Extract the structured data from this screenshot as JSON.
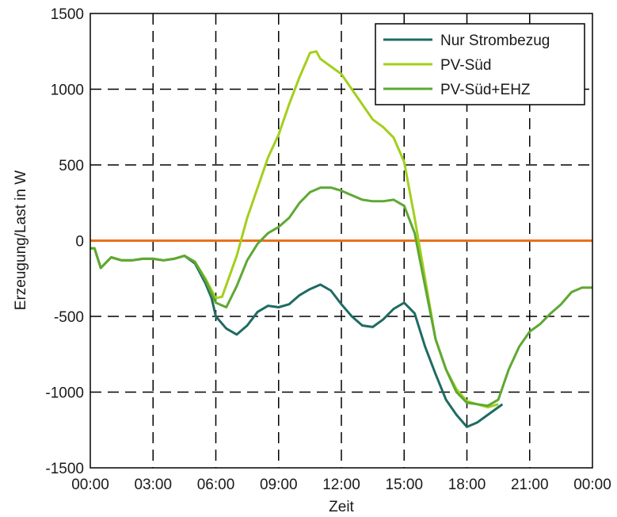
{
  "chart_data": {
    "type": "line",
    "title": "",
    "xlabel": "Zeit",
    "ylabel": "Erzeugung/Last in W",
    "xlim": [
      0,
      24
    ],
    "ylim": [
      -1500,
      1500
    ],
    "x_ticks": [
      "00:00",
      "03:00",
      "06:00",
      "09:00",
      "12:00",
      "15:00",
      "18:00",
      "21:00",
      "00:00"
    ],
    "y_ticks": [
      "1500",
      "1000",
      "500",
      "0",
      "-500",
      "-1000",
      "-1500"
    ],
    "y_tick_values": [
      1500,
      1000,
      500,
      0,
      -500,
      -1000,
      -1500
    ],
    "grid": true,
    "legend_position": "top-right",
    "zero_line_color": "#e8711a",
    "series": [
      {
        "name": "Nur Strombezug",
        "color": "#1f6b63",
        "points": [
          [
            0,
            -50
          ],
          [
            0.2,
            -50
          ],
          [
            0.5,
            -180
          ],
          [
            1,
            -110
          ],
          [
            1.5,
            -130
          ],
          [
            2,
            -130
          ],
          [
            2.5,
            -120
          ],
          [
            3,
            -120
          ],
          [
            3.5,
            -130
          ],
          [
            4,
            -120
          ],
          [
            4.5,
            -100
          ],
          [
            5,
            -150
          ],
          [
            5.5,
            -280
          ],
          [
            5.8,
            -380
          ],
          [
            6,
            -500
          ],
          [
            6.5,
            -580
          ],
          [
            7,
            -620
          ],
          [
            7.5,
            -560
          ],
          [
            8,
            -470
          ],
          [
            8.5,
            -430
          ],
          [
            9,
            -440
          ],
          [
            9.5,
            -420
          ],
          [
            10,
            -360
          ],
          [
            10.5,
            -320
          ],
          [
            11,
            -290
          ],
          [
            11.5,
            -330
          ],
          [
            12,
            -420
          ],
          [
            12.5,
            -500
          ],
          [
            13,
            -560
          ],
          [
            13.5,
            -570
          ],
          [
            14,
            -520
          ],
          [
            14.5,
            -450
          ],
          [
            15,
            -410
          ],
          [
            15.5,
            -480
          ],
          [
            16,
            -700
          ],
          [
            16.5,
            -880
          ],
          [
            17,
            -1050
          ],
          [
            17.5,
            -1150
          ],
          [
            18,
            -1230
          ],
          [
            18.5,
            -1200
          ],
          [
            19,
            -1150
          ],
          [
            19.5,
            -1100
          ],
          [
            19.7,
            -1080
          ]
        ]
      },
      {
        "name": "PV-Süd",
        "color": "#a3cf1c",
        "points": [
          [
            0,
            -50
          ],
          [
            0.2,
            -50
          ],
          [
            0.5,
            -180
          ],
          [
            1,
            -110
          ],
          [
            1.5,
            -130
          ],
          [
            2,
            -130
          ],
          [
            2.5,
            -120
          ],
          [
            3,
            -120
          ],
          [
            3.5,
            -130
          ],
          [
            4,
            -120
          ],
          [
            4.5,
            -100
          ],
          [
            5,
            -140
          ],
          [
            5.5,
            -250
          ],
          [
            6,
            -380
          ],
          [
            6.3,
            -370
          ],
          [
            7,
            -100
          ],
          [
            7.5,
            150
          ],
          [
            8,
            350
          ],
          [
            8.5,
            550
          ],
          [
            9,
            700
          ],
          [
            9.5,
            900
          ],
          [
            10,
            1080
          ],
          [
            10.5,
            1240
          ],
          [
            10.8,
            1250
          ],
          [
            11,
            1200
          ],
          [
            11.5,
            1150
          ],
          [
            12,
            1100
          ],
          [
            12.5,
            1000
          ],
          [
            13,
            900
          ],
          [
            13.5,
            800
          ],
          [
            14,
            750
          ],
          [
            14.5,
            680
          ],
          [
            15,
            520
          ],
          [
            15.5,
            150
          ],
          [
            16,
            -250
          ],
          [
            16.5,
            -650
          ],
          [
            17,
            -850
          ],
          [
            17.5,
            -980
          ],
          [
            18,
            -1060
          ],
          [
            18.5,
            -1080
          ],
          [
            19,
            -1100
          ],
          [
            19.5,
            -1080
          ]
        ]
      },
      {
        "name": "PV-Süd+EHZ",
        "color": "#5ea833",
        "points": [
          [
            0,
            -50
          ],
          [
            0.2,
            -50
          ],
          [
            0.5,
            -180
          ],
          [
            1,
            -110
          ],
          [
            1.5,
            -130
          ],
          [
            2,
            -130
          ],
          [
            2.5,
            -120
          ],
          [
            3,
            -120
          ],
          [
            3.5,
            -130
          ],
          [
            4,
            -120
          ],
          [
            4.5,
            -100
          ],
          [
            5,
            -140
          ],
          [
            5.5,
            -260
          ],
          [
            6,
            -410
          ],
          [
            6.5,
            -440
          ],
          [
            7,
            -300
          ],
          [
            7.5,
            -130
          ],
          [
            8,
            -20
          ],
          [
            8.5,
            50
          ],
          [
            9,
            90
          ],
          [
            9.5,
            150
          ],
          [
            10,
            250
          ],
          [
            10.5,
            320
          ],
          [
            11,
            350
          ],
          [
            11.5,
            350
          ],
          [
            12,
            330
          ],
          [
            12.5,
            300
          ],
          [
            13,
            270
          ],
          [
            13.5,
            260
          ],
          [
            14,
            260
          ],
          [
            14.5,
            270
          ],
          [
            15,
            230
          ],
          [
            15.5,
            50
          ],
          [
            16,
            -300
          ],
          [
            16.5,
            -650
          ],
          [
            17,
            -850
          ],
          [
            17.5,
            -1000
          ],
          [
            18,
            -1070
          ],
          [
            18.5,
            -1080
          ],
          [
            19,
            -1090
          ],
          [
            19.5,
            -1050
          ],
          [
            20,
            -850
          ],
          [
            20.5,
            -700
          ],
          [
            21,
            -600
          ],
          [
            21.5,
            -550
          ],
          [
            22,
            -480
          ],
          [
            22.5,
            -420
          ],
          [
            23,
            -340
          ],
          [
            23.5,
            -310
          ],
          [
            24,
            -310
          ]
        ]
      }
    ]
  }
}
